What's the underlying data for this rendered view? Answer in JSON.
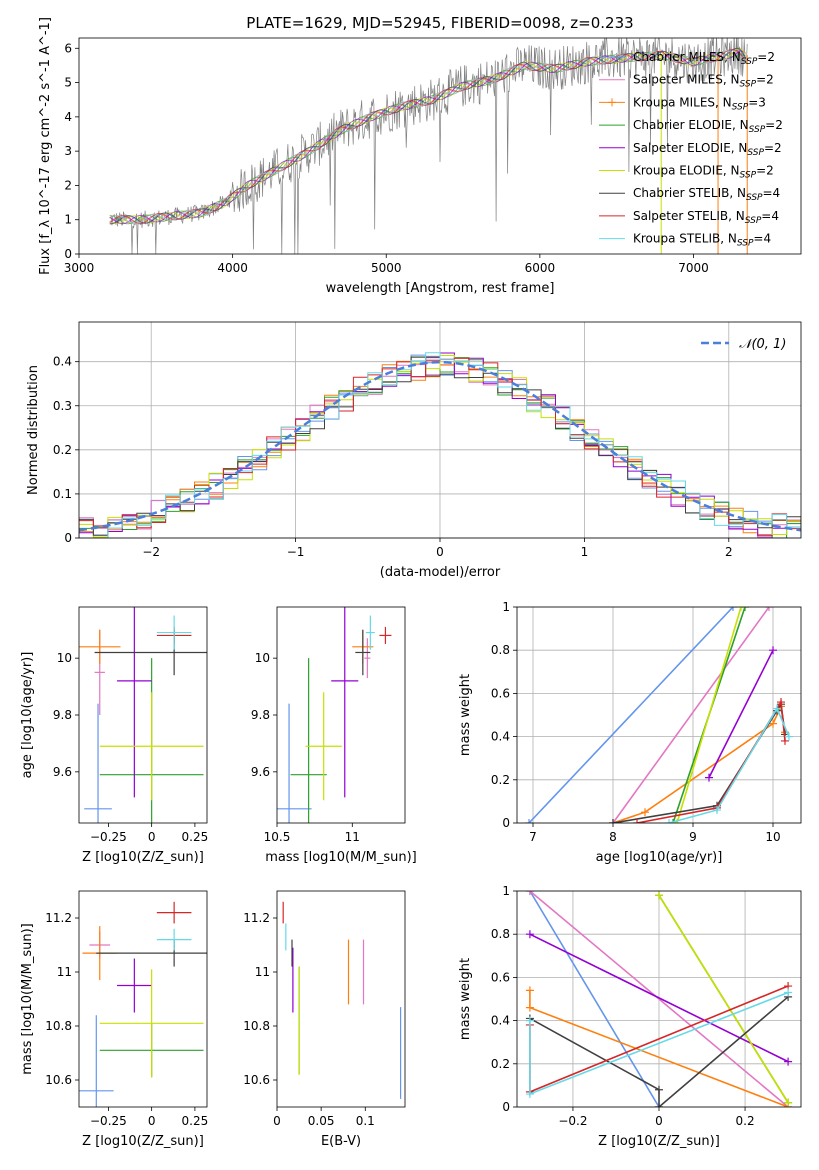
{
  "figure_title": "PLATE=1629, MJD=52945, FIBERID=0098, z=0.233",
  "colors": {
    "Chabrier MILES": "#6495ed",
    "Salpeter MILES": "#e377c2",
    "Kroupa MILES": "#ff7f0e",
    "Chabrier ELODIE": "#2ca02c",
    "Salpeter ELODIE": "#9400d3",
    "Kroupa ELODIE": "#c8e000",
    "Chabrier STELIB": "#404040",
    "Salpeter STELIB": "#d62728",
    "Kroupa STELIB": "#66d9e8"
  },
  "chart_data": [
    {
      "id": "spectrum",
      "type": "line",
      "title": "PLATE=1629, MJD=52945, FIBERID=0098, z=0.233",
      "xlabel": "wavelength [Angstrom, rest frame]",
      "ylabel": "Flux [f_λ 10^-17 erg cm^-2 s^-1 A^-1]",
      "xlim": [
        3000,
        7700
      ],
      "ylim": [
        0,
        6.3
      ],
      "xticks": [
        3000,
        4000,
        5000,
        6000,
        7000
      ],
      "yticks": [
        0,
        1,
        2,
        3,
        4,
        5,
        6
      ],
      "grid": false,
      "legend_placement": "top-right",
      "legend": [
        {
          "name": "Chabrier MILES",
          "sub": "SSP",
          "n": "2"
        },
        {
          "name": "Salpeter MILES",
          "sub": "SSP",
          "n": "2"
        },
        {
          "name": "Kroupa MILES",
          "sub": "SSP",
          "n": "3"
        },
        {
          "name": "Chabrier ELODIE",
          "sub": "SSP",
          "n": "2"
        },
        {
          "name": "Salpeter ELODIE",
          "sub": "SSP",
          "n": "2"
        },
        {
          "name": "Kroupa ELODIE",
          "sub": "SSP",
          "n": "2"
        },
        {
          "name": "Chabrier STELIB",
          "sub": "SSP",
          "n": "4"
        },
        {
          "name": "Salpeter STELIB",
          "sub": "SSP",
          "n": "4"
        },
        {
          "name": "Kroupa STELIB",
          "sub": "SSP",
          "n": "4"
        }
      ],
      "data_continuum": {
        "x": [
          3200,
          3400,
          3600,
          3800,
          3950,
          4100,
          4300,
          4500,
          4700,
          4900,
          5100,
          5300,
          5500,
          5700,
          5900,
          6100,
          6300,
          6500,
          6800,
          7000,
          7300,
          7350
        ],
        "y": [
          1.0,
          1.0,
          1.1,
          1.2,
          1.5,
          2.0,
          2.5,
          3.0,
          3.6,
          4.0,
          4.3,
          4.5,
          4.9,
          5.1,
          5.5,
          5.4,
          5.6,
          5.7,
          5.8,
          5.6,
          5.9,
          5.7
        ]
      }
    },
    {
      "id": "residuals",
      "type": "histogram",
      "xlabel": "(data-model)/error",
      "ylabel": "Normed distribution",
      "xlim": [
        -2.5,
        2.5
      ],
      "ylim": [
        0,
        0.49
      ],
      "xticks": [
        -2,
        -1,
        0,
        1,
        2
      ],
      "yticks": [
        0.0,
        0.1,
        0.2,
        0.3,
        0.4
      ],
      "grid": true,
      "legend_placement": "top-right",
      "legend_label": "𝒩(0, 1)",
      "gaussian": {
        "mu": 0,
        "sigma": 1
      }
    },
    {
      "id": "z_age",
      "type": "errorbar",
      "xlabel": "Z [log10(Z/Z_sun)]",
      "ylabel": "age [log10(age/yr)]",
      "xlim": [
        -0.42,
        0.32
      ],
      "ylim": [
        9.42,
        10.18
      ],
      "xticks": [
        -0.25,
        0.0,
        0.25
      ],
      "yticks": [
        9.6,
        9.8,
        10.0
      ],
      "grid": false,
      "points": [
        {
          "model": "Chabrier MILES",
          "x": -0.31,
          "y": 9.47,
          "xerr": 0.08,
          "yerr": 0.37
        },
        {
          "model": "Salpeter MILES",
          "x": -0.3,
          "y": 9.95,
          "xerr": 0.03,
          "yerr": 0.15
        },
        {
          "model": "Kroupa MILES",
          "x": -0.3,
          "y": 10.04,
          "xerr": 0.12,
          "yerr": 0.06
        },
        {
          "model": "Chabrier ELODIE",
          "x": 0.0,
          "y": 9.59,
          "xerr": 0.3,
          "yerr": 0.41
        },
        {
          "model": "Salpeter ELODIE",
          "x": -0.1,
          "y": 9.92,
          "xerr": 0.1,
          "yerr": 0.41
        },
        {
          "model": "Kroupa ELODIE",
          "x": 0.0,
          "y": 9.69,
          "xerr": 0.3,
          "yerr": 0.19
        },
        {
          "model": "Chabrier STELIB",
          "x": 0.13,
          "y": 10.02,
          "xerr": 0.46,
          "yerr": 0.08
        },
        {
          "model": "Salpeter STELIB",
          "x": 0.13,
          "y": 10.08,
          "xerr": 0.1,
          "yerr": 0.03
        },
        {
          "model": "Kroupa STELIB",
          "x": 0.13,
          "y": 10.09,
          "xerr": 0.1,
          "yerr": 0.06
        }
      ]
    },
    {
      "id": "mass_age",
      "type": "errorbar",
      "xlabel": "mass [log10(M/M_sun)]",
      "ylabel": "",
      "xlim": [
        10.5,
        11.35
      ],
      "ylim": [
        9.42,
        10.18
      ],
      "xticks": [
        10.5,
        11.0
      ],
      "yticks": [
        9.6,
        9.8,
        10.0
      ],
      "grid": false,
      "points": [
        {
          "model": "Chabrier MILES",
          "x": 10.58,
          "y": 9.47,
          "xerr": 0.15,
          "yerr": 0.37
        },
        {
          "model": "Salpeter MILES",
          "x": 11.1,
          "y": 10.0,
          "xerr": 0.02,
          "yerr": 0.07
        },
        {
          "model": "Kroupa MILES",
          "x": 11.07,
          "y": 10.04,
          "xerr": 0.07,
          "yerr": 0.06
        },
        {
          "model": "Chabrier ELODIE",
          "x": 10.71,
          "y": 9.59,
          "xerr": 0.12,
          "yerr": 0.41
        },
        {
          "model": "Salpeter ELODIE",
          "x": 10.95,
          "y": 9.92,
          "xerr": 0.09,
          "yerr": 0.41
        },
        {
          "model": "Kroupa ELODIE",
          "x": 10.81,
          "y": 9.69,
          "xerr": 0.12,
          "yerr": 0.19
        },
        {
          "model": "Chabrier STELIB",
          "x": 11.07,
          "y": 10.02,
          "xerr": 0.05,
          "yerr": 0.08
        },
        {
          "model": "Salpeter STELIB",
          "x": 11.22,
          "y": 10.08,
          "xerr": 0.04,
          "yerr": 0.03
        },
        {
          "model": "Kroupa STELIB",
          "x": 11.12,
          "y": 10.09,
          "xerr": 0.03,
          "yerr": 0.06
        }
      ]
    },
    {
      "id": "age_weight",
      "type": "line",
      "xlabel": "age [log10(age/yr)]",
      "ylabel": "mass weight",
      "xlim": [
        6.8,
        10.35
      ],
      "ylim": [
        0,
        1
      ],
      "xticks": [
        7,
        8,
        9,
        10
      ],
      "yticks": [
        0.0,
        0.2,
        0.4,
        0.6,
        0.8,
        1.0
      ],
      "grid": true,
      "series": [
        {
          "model": "Chabrier MILES",
          "x": [
            6.95,
            9.5
          ],
          "y": [
            0.0,
            1.0
          ]
        },
        {
          "model": "Salpeter MILES",
          "x": [
            8.0,
            9.95
          ],
          "y": [
            0.0,
            1.0
          ]
        },
        {
          "model": "Kroupa MILES",
          "x": [
            8.0,
            8.4,
            10.0,
            10.1,
            10.15
          ],
          "y": [
            0.0,
            0.05,
            0.46,
            0.54,
            0.42
          ]
        },
        {
          "model": "Chabrier ELODIE",
          "x": [
            8.75,
            9.65
          ],
          "y": [
            0.0,
            1.0
          ]
        },
        {
          "model": "Salpeter ELODIE",
          "x": [
            9.2,
            10.0
          ],
          "y": [
            0.21,
            0.8
          ]
        },
        {
          "model": "Kroupa ELODIE",
          "x": [
            8.8,
            9.6
          ],
          "y": [
            0.0,
            1.0
          ]
        },
        {
          "model": "Chabrier STELIB",
          "x": [
            8.0,
            9.3,
            10.05,
            10.1,
            10.15
          ],
          "y": [
            0.0,
            0.08,
            0.52,
            0.55,
            0.41
          ]
        },
        {
          "model": "Salpeter STELIB",
          "x": [
            8.3,
            9.3,
            10.1,
            10.15
          ],
          "y": [
            0.0,
            0.07,
            0.56,
            0.38
          ]
        },
        {
          "model": "Kroupa STELIB",
          "x": [
            8.7,
            9.3,
            10.05,
            10.2
          ],
          "y": [
            0.0,
            0.06,
            0.53,
            0.4
          ]
        }
      ]
    },
    {
      "id": "z_mass",
      "type": "errorbar",
      "xlabel": "Z [log10(Z/Z_sun)]",
      "ylabel": "mass [log10(M/M_sun)]",
      "xlim": [
        -0.42,
        0.32
      ],
      "ylim": [
        10.5,
        11.3
      ],
      "xticks": [
        -0.25,
        0.0,
        0.25
      ],
      "yticks": [
        10.6,
        10.8,
        11.0,
        11.2
      ],
      "grid": false,
      "points": [
        {
          "model": "Chabrier MILES",
          "x": -0.32,
          "y": 10.56,
          "xerr": 0.1,
          "yerr": 0.28
        },
        {
          "model": "Salpeter MILES",
          "x": -0.3,
          "y": 11.1,
          "xerr": 0.06,
          "yerr": 0.05
        },
        {
          "model": "Kroupa MILES",
          "x": -0.3,
          "y": 11.07,
          "xerr": 0.1,
          "yerr": 0.1
        },
        {
          "model": "Chabrier ELODIE",
          "x": 0.0,
          "y": 10.71,
          "xerr": 0.3,
          "yerr": 0.1
        },
        {
          "model": "Salpeter ELODIE",
          "x": -0.1,
          "y": 10.95,
          "xerr": 0.1,
          "yerr": 0.1
        },
        {
          "model": "Kroupa ELODIE",
          "x": 0.0,
          "y": 10.81,
          "xerr": 0.3,
          "yerr": 0.2
        },
        {
          "model": "Chabrier STELIB",
          "x": 0.13,
          "y": 11.07,
          "xerr": 0.45,
          "yerr": 0.05
        },
        {
          "model": "Salpeter STELIB",
          "x": 0.13,
          "y": 11.22,
          "xerr": 0.1,
          "yerr": 0.04
        },
        {
          "model": "Kroupa STELIB",
          "x": 0.13,
          "y": 11.12,
          "xerr": 0.1,
          "yerr": 0.04
        }
      ]
    },
    {
      "id": "ebv_mass",
      "type": "errorbar",
      "xlabel": "E(B-V)",
      "ylabel": "",
      "xlim": [
        0.0,
        0.145
      ],
      "ylim": [
        10.5,
        11.3
      ],
      "xticks": [
        0.0,
        0.05,
        0.1
      ],
      "yticks": [
        10.6,
        10.8,
        11.0,
        11.2
      ],
      "grid": false,
      "points": [
        {
          "model": "Chabrier MILES",
          "x": 0.14,
          "y": 10.7,
          "xerr": 0.0,
          "yerr": 0.17
        },
        {
          "model": "Salpeter MILES",
          "x": 0.098,
          "y": 11.0,
          "xerr": 0.0,
          "yerr": 0.12
        },
        {
          "model": "Kroupa MILES",
          "x": 0.081,
          "y": 11.0,
          "xerr": 0.0,
          "yerr": 0.12
        },
        {
          "model": "Chabrier ELODIE",
          "x": 0.025,
          "y": 10.82,
          "xerr": 0.0,
          "yerr": 0.2
        },
        {
          "model": "Salpeter ELODIE",
          "x": 0.018,
          "y": 10.97,
          "xerr": 0.0,
          "yerr": 0.12
        },
        {
          "model": "Kroupa ELODIE",
          "x": 0.025,
          "y": 10.82,
          "xerr": 0.0,
          "yerr": 0.2
        },
        {
          "model": "Chabrier STELIB",
          "x": 0.017,
          "y": 11.07,
          "xerr": 0.0,
          "yerr": 0.05
        },
        {
          "model": "Salpeter STELIB",
          "x": 0.007,
          "y": 11.22,
          "xerr": 0.0,
          "yerr": 0.04
        },
        {
          "model": "Kroupa STELIB",
          "x": 0.01,
          "y": 11.13,
          "xerr": 0.0,
          "yerr": 0.05
        }
      ]
    },
    {
      "id": "z_weight",
      "type": "line",
      "xlabel": "Z [log10(Z/Z_sun)]",
      "ylabel": "mass weight",
      "xlim": [
        -0.33,
        0.33
      ],
      "ylim": [
        0,
        1
      ],
      "xticks": [
        -0.2,
        0.0,
        0.2
      ],
      "yticks": [
        0.0,
        0.2,
        0.4,
        0.6,
        0.8,
        1.0
      ],
      "grid": true,
      "series": [
        {
          "model": "Chabrier MILES",
          "x": [
            -0.3,
            0.0
          ],
          "y": [
            1.0,
            0.0
          ]
        },
        {
          "model": "Salpeter MILES",
          "x": [
            -0.3,
            0.3
          ],
          "y": [
            1.0,
            0.0
          ]
        },
        {
          "model": "Kroupa MILES",
          "x": [
            -0.3,
            -0.3,
            0.3
          ],
          "y": [
            0.54,
            0.46,
            0.0
          ]
        },
        {
          "model": "Chabrier ELODIE",
          "x": [
            0.0,
            0.3
          ],
          "y": [
            0.98,
            0.02
          ]
        },
        {
          "model": "Salpeter ELODIE",
          "x": [
            -0.3,
            0.3
          ],
          "y": [
            0.8,
            0.21
          ]
        },
        {
          "model": "Kroupa ELODIE",
          "x": [
            0.0,
            0.3
          ],
          "y": [
            0.98,
            0.02
          ]
        },
        {
          "model": "Chabrier STELIB",
          "x": [
            -0.3,
            0.0,
            0.0,
            0.3
          ],
          "y": [
            0.41,
            0.08,
            0.0,
            0.51
          ]
        },
        {
          "model": "Salpeter STELIB",
          "x": [
            -0.3,
            -0.3,
            0.3
          ],
          "y": [
            0.38,
            0.07,
            0.56
          ]
        },
        {
          "model": "Kroupa STELIB",
          "x": [
            -0.3,
            -0.3,
            0.3
          ],
          "y": [
            0.4,
            0.06,
            0.53
          ]
        }
      ]
    }
  ]
}
